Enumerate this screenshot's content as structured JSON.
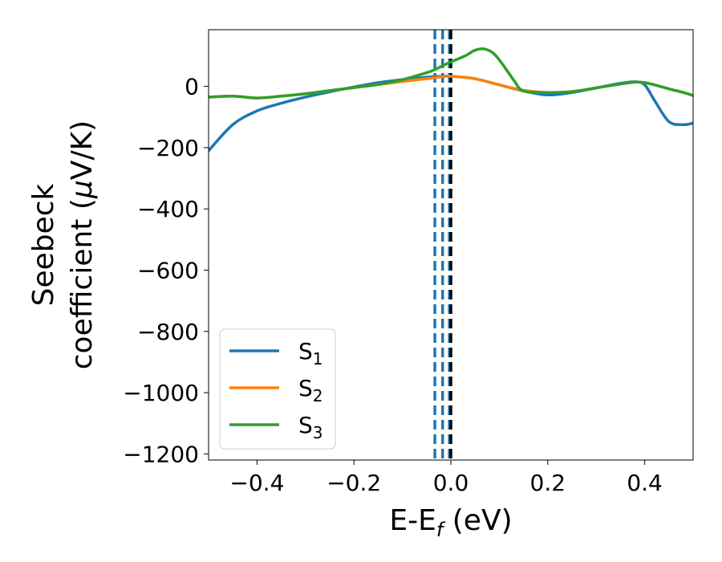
{
  "chart_data": {
    "type": "line",
    "xlabel": {
      "base": "E-E",
      "sub": "f",
      "unit": " (eV)"
    },
    "ylabel": {
      "line1": "Seebeck",
      "line2": "coefficient  (",
      "mu": "μ",
      "unit": "V/K)"
    },
    "xlim": [
      -0.5,
      0.5
    ],
    "ylim": [
      -1220,
      185
    ],
    "x_ticks": [
      -0.4,
      -0.2,
      0.0,
      0.2,
      0.4
    ],
    "x_tick_labels": [
      "−0.4",
      "−0.2",
      "0.0",
      "0.2",
      "0.4"
    ],
    "y_ticks": [
      0,
      -200,
      -400,
      -600,
      -800,
      -1000,
      -1200
    ],
    "y_tick_labels": [
      "0",
      "−200",
      "−400",
      "−600",
      "−800",
      "−1000",
      "−1200"
    ],
    "grid": false,
    "legend_position": "lower-left",
    "vertical_lines": [
      {
        "x": -0.033,
        "color": "#1f77b4",
        "style": "dashed"
      },
      {
        "x": -0.017,
        "color": "#1f77b4",
        "style": "dashed"
      },
      {
        "x": -0.003,
        "color": "#1f77b4",
        "style": "dashed"
      },
      {
        "x": 0.0,
        "color": "#000000",
        "style": "dashed"
      }
    ],
    "series": [
      {
        "name": "S",
        "subscript": "1",
        "color": "#1f77b4",
        "x": [
          -0.5,
          -0.45,
          -0.4,
          -0.35,
          -0.3,
          -0.25,
          -0.2,
          -0.15,
          -0.1,
          -0.05,
          -0.02,
          0.0,
          0.05,
          0.1,
          0.15,
          0.2,
          0.25,
          0.3,
          0.35,
          0.38,
          0.4,
          0.42,
          0.45,
          0.48,
          0.5
        ],
        "y": [
          -210,
          -125,
          -80,
          -55,
          -35,
          -18,
          -2,
          12,
          22,
          30,
          33,
          33,
          25,
          5,
          -15,
          -28,
          -20,
          -5,
          10,
          15,
          5,
          -45,
          -115,
          -125,
          -120
        ]
      },
      {
        "name": "S",
        "subscript": "2",
        "color": "#ff7f0e",
        "x": [
          -0.5,
          -0.45,
          -0.4,
          -0.35,
          -0.3,
          -0.25,
          -0.2,
          -0.15,
          -0.1,
          -0.05,
          -0.02,
          0.0,
          0.05,
          0.1,
          0.15,
          0.2,
          0.25,
          0.3,
          0.35,
          0.38,
          0.4,
          0.42,
          0.45,
          0.48,
          0.5
        ],
        "y": [
          -35,
          -32,
          -38,
          -32,
          -24,
          -14,
          -4,
          6,
          16,
          25,
          31,
          33,
          25,
          5,
          -13,
          -20,
          -17,
          -5,
          8,
          14,
          12,
          5,
          -8,
          -20,
          -30
        ]
      },
      {
        "name": "S",
        "subscript": "3",
        "color": "#2ca02c",
        "x": [
          -0.5,
          -0.45,
          -0.4,
          -0.35,
          -0.3,
          -0.25,
          -0.2,
          -0.15,
          -0.1,
          -0.07,
          -0.04,
          -0.02,
          0.0,
          0.03,
          0.05,
          0.07,
          0.09,
          0.11,
          0.13,
          0.15,
          0.2,
          0.25,
          0.3,
          0.35,
          0.38,
          0.4,
          0.42,
          0.45,
          0.48,
          0.5
        ],
        "y": [
          -35,
          -32,
          -38,
          -32,
          -24,
          -14,
          -4,
          6,
          22,
          35,
          50,
          65,
          80,
          100,
          118,
          122,
          105,
          65,
          20,
          -15,
          -20,
          -17,
          -5,
          8,
          14,
          12,
          5,
          -8,
          -20,
          -30
        ]
      }
    ]
  }
}
